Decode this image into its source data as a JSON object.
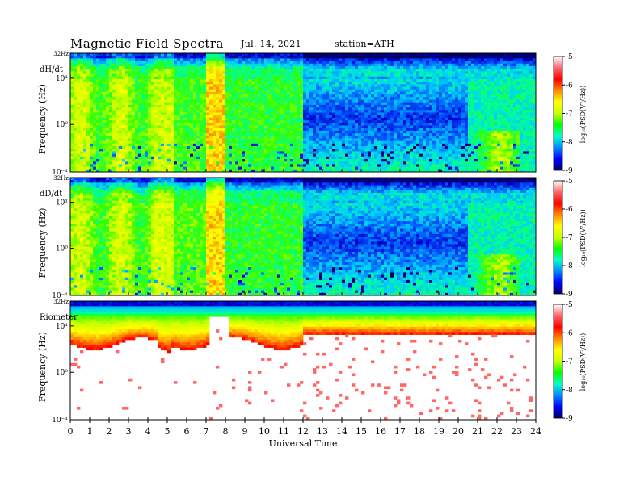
{
  "header": {
    "title": "Magnetic Field Spectra",
    "date": "Jul. 14, 2021",
    "station": "station=ATH"
  },
  "chart_data": [
    {
      "type": "heatmap",
      "panel_label": "dH/dt",
      "ylabel": "Frequency (Hz)",
      "top_label": "32Hz",
      "yticks": [
        "10¹",
        "10⁰",
        "10⁻¹"
      ],
      "x_range": [
        0,
        24
      ],
      "colorbar": {
        "label": "log₁₀(PSD(V²/Hz))",
        "ticks": [
          "-5",
          "-6",
          "-7",
          "-8",
          "-9"
        ],
        "range": [
          -9,
          -5
        ]
      }
    },
    {
      "type": "heatmap",
      "panel_label": "dD/dt",
      "ylabel": "Frequency (Hz)",
      "top_label": "32Hz",
      "yticks": [
        "10¹",
        "10⁰",
        "10⁻¹"
      ],
      "x_range": [
        0,
        24
      ],
      "colorbar": {
        "label": "log₁₀(PSD(V²/Hz))",
        "ticks": [
          "-5",
          "-6",
          "-7",
          "-8",
          "-9"
        ],
        "range": [
          -9,
          -5
        ]
      }
    },
    {
      "type": "heatmap",
      "panel_label": "Riometer",
      "ylabel": "Frequency (Hz)",
      "top_label": "32Hz",
      "yticks": [
        "10¹",
        "10⁰",
        "10⁻¹"
      ],
      "x_range": [
        0,
        24
      ],
      "colorbar": {
        "label": "log₁₀(PSD(V²/Hz))",
        "ticks": [
          "-5",
          "-6",
          "-7",
          "-8",
          "-9"
        ],
        "range": [
          -9,
          -5
        ]
      }
    }
  ],
  "x_axis": {
    "label": "Universal Time",
    "ticks": [
      "0",
      "1",
      "2",
      "3",
      "4",
      "5",
      "6",
      "7",
      "8",
      "9",
      "10",
      "11",
      "12",
      "13",
      "14",
      "15",
      "16",
      "17",
      "18",
      "19",
      "20",
      "21",
      "22",
      "23",
      "24"
    ]
  },
  "colors": {
    "colormap": [
      "#000066",
      "#0000ff",
      "#00aaff",
      "#00ff88",
      "#66ff00",
      "#ffff00",
      "#ff8800",
      "#ff0000",
      "#ffffff"
    ]
  }
}
